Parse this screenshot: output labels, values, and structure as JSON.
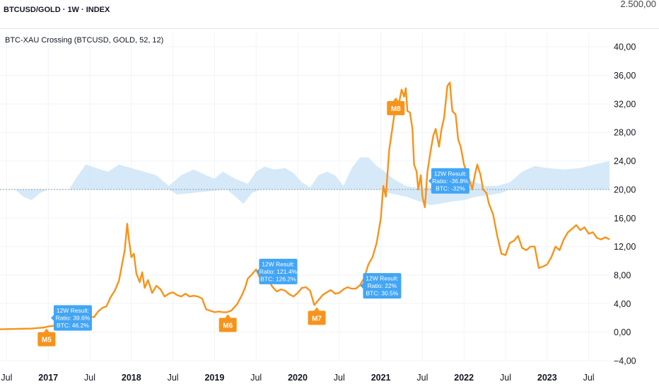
{
  "top_pane": {
    "title": "BTCUSD/GOLD · 1W · INDEX",
    "axis_label": "2.500,00"
  },
  "indicator": {
    "title": "BTC-XAU Crossing (BTCUSD, GOLD, 52, 12)"
  },
  "colors": {
    "line": "#f7931a",
    "band": "#cfe5f7",
    "reference_line": "#8c9bb0",
    "marker": "#f7931a",
    "callout": "#42a5f5",
    "grid": "#f0f3f7"
  },
  "chart_data": {
    "type": "line",
    "title": "BTC-XAU Crossing (BTCUSD, GOLD, 52, 12)",
    "x_range": [
      2016.42,
      2023.75
    ],
    "ylim": [
      -4,
      42
    ],
    "grid": true,
    "y_ticks": [
      "40,00",
      "36,00",
      "32,00",
      "28,00",
      "24,00",
      "20,00",
      "16,00",
      "12,00",
      "8,00",
      "4,00",
      "0,00",
      "−4,00"
    ],
    "y_tick_values": [
      40,
      36,
      32,
      28,
      24,
      20,
      16,
      12,
      8,
      4,
      0,
      -4
    ],
    "x_ticks": [
      {
        "t": 2016.5,
        "label": "Jul",
        "year": false
      },
      {
        "t": 2017.0,
        "label": "2017",
        "year": true
      },
      {
        "t": 2017.5,
        "label": "Jul",
        "year": false
      },
      {
        "t": 2018.0,
        "label": "2018",
        "year": true
      },
      {
        "t": 2018.5,
        "label": "Jul",
        "year": false
      },
      {
        "t": 2019.0,
        "label": "2019",
        "year": true
      },
      {
        "t": 2019.5,
        "label": "Jul",
        "year": false
      },
      {
        "t": 2020.0,
        "label": "2020",
        "year": true
      },
      {
        "t": 2020.5,
        "label": "Jul",
        "year": false
      },
      {
        "t": 2021.0,
        "label": "2021",
        "year": true
      },
      {
        "t": 2021.5,
        "label": "Jul",
        "year": false
      },
      {
        "t": 2022.0,
        "label": "2022",
        "year": true
      },
      {
        "t": 2022.5,
        "label": "Jul",
        "year": false
      },
      {
        "t": 2023.0,
        "label": "2023",
        "year": true
      },
      {
        "t": 2023.5,
        "label": "Jul",
        "year": false
      }
    ],
    "reference_level": 20,
    "series": [
      {
        "name": "BTCUSD/GOLD",
        "points": [
          [
            2016.42,
            0.4
          ],
          [
            2016.6,
            0.45
          ],
          [
            2016.8,
            0.5
          ],
          [
            2016.95,
            0.65
          ],
          [
            2017.0,
            0.8
          ],
          [
            2017.1,
            0.95
          ],
          [
            2017.2,
            0.9
          ],
          [
            2017.3,
            1.0
          ],
          [
            2017.38,
            1.5
          ],
          [
            2017.45,
            1.8
          ],
          [
            2017.5,
            2.2
          ],
          [
            2017.55,
            2.1
          ],
          [
            2017.6,
            2.9
          ],
          [
            2017.65,
            3.4
          ],
          [
            2017.7,
            3.6
          ],
          [
            2017.75,
            4.9
          ],
          [
            2017.8,
            5.8
          ],
          [
            2017.85,
            7.2
          ],
          [
            2017.88,
            9.0
          ],
          [
            2017.92,
            11.5
          ],
          [
            2017.95,
            15.2
          ],
          [
            2017.97,
            13.0
          ],
          [
            2018.0,
            10.5
          ],
          [
            2018.03,
            11.0
          ],
          [
            2018.06,
            8.2
          ],
          [
            2018.1,
            7.0
          ],
          [
            2018.13,
            8.4
          ],
          [
            2018.16,
            6.2
          ],
          [
            2018.2,
            7.3
          ],
          [
            2018.25,
            5.5
          ],
          [
            2018.3,
            6.5
          ],
          [
            2018.35,
            6.0
          ],
          [
            2018.4,
            5.0
          ],
          [
            2018.45,
            5.4
          ],
          [
            2018.5,
            5.6
          ],
          [
            2018.55,
            5.2
          ],
          [
            2018.6,
            5.0
          ],
          [
            2018.65,
            5.4
          ],
          [
            2018.7,
            5.0
          ],
          [
            2018.75,
            5.1
          ],
          [
            2018.8,
            5.0
          ],
          [
            2018.85,
            4.7
          ],
          [
            2018.9,
            3.2
          ],
          [
            2018.95,
            3.0
          ],
          [
            2019.0,
            2.8
          ],
          [
            2019.05,
            2.9
          ],
          [
            2019.1,
            2.8
          ],
          [
            2019.15,
            2.8
          ],
          [
            2019.2,
            3.0
          ],
          [
            2019.27,
            3.9
          ],
          [
            2019.33,
            5.2
          ],
          [
            2019.37,
            6.3
          ],
          [
            2019.4,
            7.5
          ],
          [
            2019.45,
            8.1
          ],
          [
            2019.5,
            8.8
          ],
          [
            2019.55,
            7.5
          ],
          [
            2019.6,
            7.6
          ],
          [
            2019.65,
            7.2
          ],
          [
            2019.7,
            6.3
          ],
          [
            2019.75,
            5.7
          ],
          [
            2019.8,
            6.0
          ],
          [
            2019.85,
            5.8
          ],
          [
            2019.9,
            5.3
          ],
          [
            2019.95,
            5.0
          ],
          [
            2020.0,
            5.5
          ],
          [
            2020.05,
            6.2
          ],
          [
            2020.1,
            6.3
          ],
          [
            2020.15,
            5.8
          ],
          [
            2020.2,
            3.8
          ],
          [
            2020.25,
            4.5
          ],
          [
            2020.3,
            5.2
          ],
          [
            2020.35,
            5.6
          ],
          [
            2020.4,
            5.9
          ],
          [
            2020.45,
            5.4
          ],
          [
            2020.5,
            5.5
          ],
          [
            2020.55,
            6.0
          ],
          [
            2020.6,
            6.3
          ],
          [
            2020.65,
            6.1
          ],
          [
            2020.7,
            6.1
          ],
          [
            2020.75,
            6.6
          ],
          [
            2020.8,
            7.6
          ],
          [
            2020.85,
            9.5
          ],
          [
            2020.9,
            10.5
          ],
          [
            2020.95,
            12.5
          ],
          [
            2021.0,
            16.0
          ],
          [
            2021.03,
            20.5
          ],
          [
            2021.06,
            19.0
          ],
          [
            2021.1,
            25.5
          ],
          [
            2021.15,
            29.5
          ],
          [
            2021.18,
            32.0
          ],
          [
            2021.2,
            31.0
          ],
          [
            2021.25,
            34.0
          ],
          [
            2021.28,
            33.0
          ],
          [
            2021.3,
            34.2
          ],
          [
            2021.32,
            31.0
          ],
          [
            2021.35,
            30.8
          ],
          [
            2021.38,
            28.5
          ],
          [
            2021.4,
            23.5
          ],
          [
            2021.43,
            22.5
          ],
          [
            2021.45,
            20.0
          ],
          [
            2021.48,
            22.0
          ],
          [
            2021.5,
            19.0
          ],
          [
            2021.53,
            17.5
          ],
          [
            2021.56,
            22.5
          ],
          [
            2021.6,
            25.5
          ],
          [
            2021.63,
            27.5
          ],
          [
            2021.66,
            28.5
          ],
          [
            2021.7,
            26.0
          ],
          [
            2021.73,
            28.5
          ],
          [
            2021.76,
            30.0
          ],
          [
            2021.8,
            34.5
          ],
          [
            2021.83,
            35.0
          ],
          [
            2021.86,
            31.0
          ],
          [
            2021.9,
            30.5
          ],
          [
            2021.93,
            27.0
          ],
          [
            2021.96,
            26.0
          ],
          [
            2022.0,
            23.5
          ],
          [
            2022.03,
            22.5
          ],
          [
            2022.06,
            21.5
          ],
          [
            2022.1,
            20.0
          ],
          [
            2022.13,
            22.0
          ],
          [
            2022.16,
            23.5
          ],
          [
            2022.2,
            22.0
          ],
          [
            2022.23,
            20.0
          ],
          [
            2022.27,
            19.5
          ],
          [
            2022.3,
            18.0
          ],
          [
            2022.35,
            16.5
          ],
          [
            2022.4,
            13.5
          ],
          [
            2022.45,
            11.0
          ],
          [
            2022.5,
            10.8
          ],
          [
            2022.55,
            12.5
          ],
          [
            2022.6,
            12.8
          ],
          [
            2022.65,
            13.5
          ],
          [
            2022.7,
            11.8
          ],
          [
            2022.75,
            11.5
          ],
          [
            2022.8,
            12.0
          ],
          [
            2022.85,
            12.0
          ],
          [
            2022.9,
            9.0
          ],
          [
            2022.95,
            9.2
          ],
          [
            2023.0,
            9.5
          ],
          [
            2023.05,
            10.5
          ],
          [
            2023.1,
            12.0
          ],
          [
            2023.15,
            11.5
          ],
          [
            2023.2,
            13.0
          ],
          [
            2023.25,
            14.0
          ],
          [
            2023.3,
            14.5
          ],
          [
            2023.35,
            15.0
          ],
          [
            2023.4,
            14.3
          ],
          [
            2023.45,
            14.7
          ],
          [
            2023.5,
            13.8
          ],
          [
            2023.55,
            14.0
          ],
          [
            2023.6,
            13.2
          ],
          [
            2023.65,
            13.0
          ],
          [
            2023.7,
            13.3
          ],
          [
            2023.75,
            13.0
          ]
        ]
      }
    ],
    "band": {
      "upper": [
        [
          2016.42,
          20
        ],
        [
          2017.25,
          20
        ],
        [
          2017.33,
          21.5
        ],
        [
          2017.45,
          23.5
        ],
        [
          2017.58,
          23.0
        ],
        [
          2017.72,
          22.5
        ],
        [
          2017.85,
          23.5
        ],
        [
          2018.0,
          23.0
        ],
        [
          2018.15,
          22.5
        ],
        [
          2018.3,
          22.0
        ],
        [
          2018.45,
          20.5
        ],
        [
          2018.6,
          22.0
        ],
        [
          2018.75,
          22.8
        ],
        [
          2018.9,
          22.0
        ],
        [
          2019.0,
          21.5
        ],
        [
          2019.1,
          22.5
        ],
        [
          2019.25,
          21.5
        ],
        [
          2019.4,
          20.8
        ],
        [
          2019.5,
          22.5
        ],
        [
          2019.6,
          23.2
        ],
        [
          2019.72,
          22.8
        ],
        [
          2019.85,
          23.0
        ],
        [
          2019.95,
          22.3
        ],
        [
          2020.05,
          21.0
        ],
        [
          2020.15,
          20.3
        ],
        [
          2020.25,
          22.0
        ],
        [
          2020.35,
          22.5
        ],
        [
          2020.45,
          22.0
        ],
        [
          2020.55,
          20.5
        ],
        [
          2020.65,
          23.0
        ],
        [
          2020.75,
          24.5
        ],
        [
          2020.85,
          24.5
        ],
        [
          2020.95,
          23.3
        ],
        [
          2021.05,
          22.5
        ],
        [
          2021.15,
          21.5
        ],
        [
          2021.3,
          20.5
        ],
        [
          2021.45,
          20.2
        ],
        [
          2021.6,
          20.3
        ],
        [
          2021.8,
          20.6
        ],
        [
          2021.95,
          21.0
        ],
        [
          2022.1,
          21.2
        ],
        [
          2022.25,
          20.5
        ],
        [
          2022.4,
          20.5
        ],
        [
          2022.55,
          21.0
        ],
        [
          2022.7,
          22.5
        ],
        [
          2022.85,
          23.3
        ],
        [
          2023.0,
          23.0
        ],
        [
          2023.2,
          22.8
        ],
        [
          2023.4,
          23.0
        ],
        [
          2023.6,
          23.6
        ],
        [
          2023.75,
          24.0
        ]
      ],
      "lower": [
        [
          2016.42,
          20
        ],
        [
          2016.6,
          20
        ],
        [
          2016.7,
          19.0
        ],
        [
          2016.8,
          18.5
        ],
        [
          2016.9,
          19.5
        ],
        [
          2017.0,
          20
        ],
        [
          2018.45,
          20
        ],
        [
          2018.55,
          19.3
        ],
        [
          2019.15,
          20
        ],
        [
          2019.25,
          19.0
        ],
        [
          2019.35,
          18.0
        ],
        [
          2019.45,
          19.5
        ],
        [
          2019.55,
          20
        ],
        [
          2021.0,
          20
        ],
        [
          2021.1,
          19.5
        ],
        [
          2021.3,
          19.0
        ],
        [
          2021.5,
          18.2
        ],
        [
          2021.6,
          17.8
        ],
        [
          2021.7,
          18.0
        ],
        [
          2021.85,
          18.3
        ],
        [
          2022.0,
          18.5
        ],
        [
          2022.15,
          19.0
        ],
        [
          2022.3,
          19.2
        ],
        [
          2022.45,
          19.5
        ],
        [
          2022.55,
          20
        ],
        [
          2023.75,
          20
        ]
      ]
    },
    "markers": [
      {
        "label": "M5",
        "t": 2016.98,
        "y": 0.8,
        "color": "#f7931a"
      },
      {
        "label": "M6",
        "t": 2019.16,
        "y": 2.8,
        "color": "#f7931a"
      },
      {
        "label": "M7",
        "t": 2020.23,
        "y": 3.8,
        "color": "#f7931a"
      },
      {
        "label": "M8",
        "t": 2021.18,
        "y": 32.0,
        "color": "#f7931a"
      }
    ],
    "callouts": [
      {
        "lines": [
          "12W Result:",
          "Ratio: 39.6%",
          "BTC: 46.2%"
        ],
        "t": 2017.1,
        "y": 2.0
      },
      {
        "lines": [
          "12W Result:",
          "Ratio: 121.4%",
          "BTC: 126.2%"
        ],
        "t": 2019.57,
        "y": 8.5
      },
      {
        "lines": [
          "12W Result:",
          "Ratio: 22%",
          "BTC: 30.5%"
        ],
        "t": 2020.82,
        "y": 6.5
      },
      {
        "lines": [
          "12W Result:",
          "Ratio: -36.8%",
          "BTC: -32%"
        ],
        "t": 2021.64,
        "y": 21.2
      }
    ]
  }
}
